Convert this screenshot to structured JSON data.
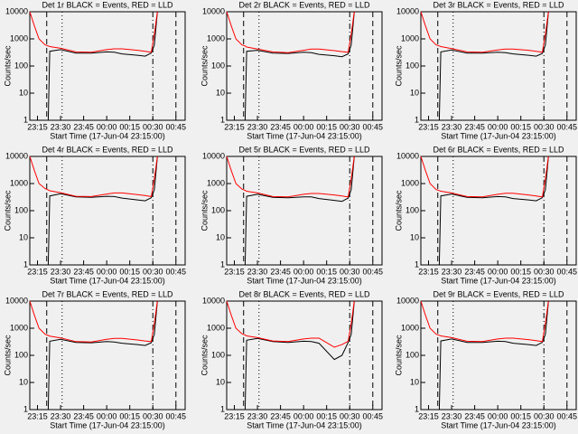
{
  "chart_data": [
    {
      "type": "line",
      "title": "Det 1r BLACK = Events, RED = LLD",
      "xlabel": "Start Time (17-Jun-04 23:15:00)",
      "ylabel": "Counts/sec",
      "ylog": true,
      "x": [
        "23:10",
        "23:13",
        "23:16",
        "23:20",
        "23:22",
        "23:23",
        "23:30",
        "23:40",
        "23:50",
        "00:00",
        "00:05",
        "00:10",
        "00:20",
        "00:25",
        "00:29",
        "00:31",
        "00:33"
      ],
      "series": [
        {
          "color": "#000000",
          "values": [
            null,
            null,
            null,
            null,
            1,
            350,
            400,
            300,
            300,
            330,
            320,
            280,
            250,
            230,
            300,
            600,
            10000
          ]
        },
        {
          "color": "#ff0000",
          "values": [
            10000,
            3000,
            1000,
            600,
            550,
            520,
            450,
            330,
            320,
            400,
            430,
            430,
            380,
            350,
            320,
            1500,
            10000
          ]
        }
      ],
      "xlim": [
        "23:10",
        "00:51"
      ],
      "xticks": [
        "23:15",
        "23:30",
        "23:45",
        "00:00",
        "00:15",
        "00:30",
        "00:45"
      ],
      "ylim": [
        1,
        10000
      ],
      "yticks": [
        1,
        10,
        100,
        1000,
        10000
      ],
      "vlines": [
        {
          "x": "23:21",
          "style": "dashed"
        },
        {
          "x": "23:31",
          "style": "dotted"
        },
        {
          "x": "00:30",
          "style": "dashdot"
        },
        {
          "x": "00:45",
          "style": "dashed"
        }
      ]
    },
    {
      "type": "line",
      "title": "Det 2r BLACK = Events, RED = LLD",
      "xlabel": "Start Time (17-Jun-04 23:15:00)",
      "ylabel": "Counts/sec",
      "ylog": true,
      "x": [
        "23:10",
        "23:13",
        "23:16",
        "23:20",
        "23:22",
        "23:23",
        "23:30",
        "23:40",
        "23:50",
        "00:00",
        "00:05",
        "00:10",
        "00:20",
        "00:25",
        "00:29",
        "00:31",
        "00:33"
      ],
      "series": [
        {
          "color": "#000000",
          "values": [
            null,
            null,
            null,
            null,
            1,
            350,
            380,
            300,
            290,
            320,
            310,
            270,
            240,
            220,
            280,
            600,
            10000
          ]
        },
        {
          "color": "#ff0000",
          "values": [
            10000,
            3000,
            1000,
            600,
            550,
            500,
            420,
            330,
            310,
            380,
            420,
            420,
            370,
            340,
            320,
            1500,
            10000
          ]
        }
      ],
      "xlim": [
        "23:10",
        "00:51"
      ],
      "xticks": [
        "23:15",
        "23:30",
        "23:45",
        "00:00",
        "00:15",
        "00:30",
        "00:45"
      ],
      "ylim": [
        1,
        10000
      ],
      "yticks": [
        1,
        10,
        100,
        1000,
        10000
      ],
      "vlines": [
        {
          "x": "23:21",
          "style": "dashed"
        },
        {
          "x": "23:31",
          "style": "dotted"
        },
        {
          "x": "00:30",
          "style": "dashdot"
        },
        {
          "x": "00:45",
          "style": "dashed"
        }
      ]
    },
    {
      "type": "line",
      "title": "Det 3r BLACK = Events, RED = LLD",
      "xlabel": "Start Time (17-Jun-04 23:15:00)",
      "ylabel": "Counts/sec",
      "ylog": true,
      "x": [
        "23:10",
        "23:13",
        "23:16",
        "23:20",
        "23:22",
        "23:23",
        "23:30",
        "23:40",
        "23:50",
        "00:00",
        "00:05",
        "00:10",
        "00:20",
        "00:25",
        "00:29",
        "00:31",
        "00:33"
      ],
      "series": [
        {
          "color": "#000000",
          "values": [
            null,
            null,
            null,
            null,
            1,
            330,
            390,
            300,
            300,
            320,
            310,
            280,
            250,
            230,
            290,
            600,
            10000
          ]
        },
        {
          "color": "#ff0000",
          "values": [
            10000,
            3000,
            1000,
            600,
            550,
            520,
            440,
            330,
            320,
            390,
            420,
            420,
            380,
            350,
            320,
            1500,
            10000
          ]
        }
      ],
      "xlim": [
        "23:10",
        "00:51"
      ],
      "xticks": [
        "23:15",
        "23:30",
        "23:45",
        "00:00",
        "00:15",
        "00:30",
        "00:45"
      ],
      "ylim": [
        1,
        10000
      ],
      "yticks": [
        1,
        10,
        100,
        1000,
        10000
      ],
      "vlines": [
        {
          "x": "23:21",
          "style": "dashed"
        },
        {
          "x": "23:31",
          "style": "dotted"
        },
        {
          "x": "00:30",
          "style": "dashdot"
        },
        {
          "x": "00:45",
          "style": "dashed"
        }
      ]
    },
    {
      "type": "line",
      "title": "Det 4r BLACK = Events, RED = LLD",
      "xlabel": "Start Time (17-Jun-04 23:15:00)",
      "ylabel": "Counts/sec",
      "ylog": true,
      "x": [
        "23:10",
        "23:13",
        "23:16",
        "23:20",
        "23:22",
        "23:23",
        "23:30",
        "23:40",
        "23:50",
        "00:00",
        "00:05",
        "00:10",
        "00:20",
        "00:25",
        "00:29",
        "00:31",
        "00:33"
      ],
      "series": [
        {
          "color": "#000000",
          "values": [
            null,
            null,
            null,
            null,
            1,
            350,
            420,
            320,
            310,
            340,
            330,
            290,
            250,
            230,
            300,
            600,
            10000
          ]
        },
        {
          "color": "#ff0000",
          "values": [
            10000,
            3000,
            1000,
            650,
            580,
            540,
            460,
            340,
            330,
            410,
            450,
            450,
            390,
            360,
            330,
            1500,
            10000
          ]
        }
      ],
      "xlim": [
        "23:10",
        "00:51"
      ],
      "xticks": [
        "23:15",
        "23:30",
        "23:45",
        "00:00",
        "00:15",
        "00:30",
        "00:45"
      ],
      "ylim": [
        1,
        10000
      ],
      "yticks": [
        1,
        10,
        100,
        1000,
        10000
      ],
      "vlines": [
        {
          "x": "23:21",
          "style": "dashed"
        },
        {
          "x": "23:31",
          "style": "dotted"
        },
        {
          "x": "00:30",
          "style": "dashdot"
        },
        {
          "x": "00:45",
          "style": "dashed"
        }
      ]
    },
    {
      "type": "line",
      "title": "Det 5r BLACK = Events, RED = LLD",
      "xlabel": "Start Time (17-Jun-04 23:15:00)",
      "ylabel": "Counts/sec",
      "ylog": true,
      "x": [
        "23:10",
        "23:13",
        "23:16",
        "23:20",
        "23:22",
        "23:23",
        "23:30",
        "23:40",
        "23:50",
        "00:00",
        "00:05",
        "00:10",
        "00:20",
        "00:25",
        "00:29",
        "00:31",
        "00:33"
      ],
      "series": [
        {
          "color": "#000000",
          "values": [
            null,
            null,
            null,
            null,
            1,
            340,
            400,
            310,
            300,
            320,
            320,
            280,
            240,
            220,
            290,
            600,
            10000
          ]
        },
        {
          "color": "#ff0000",
          "values": [
            10000,
            3000,
            1000,
            620,
            560,
            520,
            450,
            330,
            320,
            400,
            430,
            430,
            380,
            350,
            320,
            1500,
            10000
          ]
        }
      ],
      "xlim": [
        "23:10",
        "00:51"
      ],
      "xticks": [
        "23:15",
        "23:30",
        "23:45",
        "00:00",
        "00:15",
        "00:30",
        "00:45"
      ],
      "ylim": [
        1,
        10000
      ],
      "yticks": [
        1,
        10,
        100,
        1000,
        10000
      ],
      "vlines": [
        {
          "x": "23:21",
          "style": "dashed"
        },
        {
          "x": "23:31",
          "style": "dotted"
        },
        {
          "x": "00:30",
          "style": "dashdot"
        },
        {
          "x": "00:45",
          "style": "dashed"
        }
      ]
    },
    {
      "type": "line",
      "title": "Det 6r BLACK = Events, RED = LLD",
      "xlabel": "Start Time (17-Jun-04 23:15:00)",
      "ylabel": "Counts/sec",
      "ylog": true,
      "x": [
        "23:10",
        "23:13",
        "23:16",
        "23:20",
        "23:22",
        "23:23",
        "23:30",
        "23:40",
        "23:50",
        "00:00",
        "00:05",
        "00:10",
        "00:20",
        "00:25",
        "00:29",
        "00:31",
        "00:33"
      ],
      "series": [
        {
          "color": "#000000",
          "values": [
            null,
            null,
            null,
            null,
            1,
            350,
            410,
            310,
            300,
            330,
            320,
            280,
            250,
            230,
            300,
            600,
            10000
          ]
        },
        {
          "color": "#ff0000",
          "values": [
            10000,
            3000,
            1000,
            600,
            550,
            520,
            450,
            330,
            320,
            400,
            440,
            440,
            380,
            350,
            320,
            1500,
            10000
          ]
        }
      ],
      "xlim": [
        "23:10",
        "00:51"
      ],
      "xticks": [
        "23:15",
        "23:30",
        "23:45",
        "00:00",
        "00:15",
        "00:30",
        "00:45"
      ],
      "ylim": [
        1,
        10000
      ],
      "yticks": [
        1,
        10,
        100,
        1000,
        10000
      ],
      "vlines": [
        {
          "x": "23:21",
          "style": "dashed"
        },
        {
          "x": "23:31",
          "style": "dotted"
        },
        {
          "x": "00:30",
          "style": "dashdot"
        },
        {
          "x": "00:45",
          "style": "dashed"
        }
      ]
    },
    {
      "type": "line",
      "title": "Det 7r BLACK = Events, RED = LLD",
      "xlabel": "Start Time (17-Jun-04 23:15:00)",
      "ylabel": "Counts/sec",
      "ylog": true,
      "x": [
        "23:10",
        "23:13",
        "23:16",
        "23:20",
        "23:22",
        "23:23",
        "23:30",
        "23:40",
        "23:50",
        "00:00",
        "00:05",
        "00:10",
        "00:20",
        "00:25",
        "00:29",
        "00:31",
        "00:33"
      ],
      "series": [
        {
          "color": "#000000",
          "values": [
            null,
            null,
            null,
            null,
            1,
            330,
            390,
            300,
            290,
            320,
            310,
            280,
            250,
            230,
            290,
            600,
            10000
          ]
        },
        {
          "color": "#ff0000",
          "values": [
            10000,
            3000,
            1000,
            600,
            540,
            510,
            440,
            320,
            310,
            390,
            420,
            420,
            370,
            340,
            320,
            1500,
            10000
          ]
        }
      ],
      "xlim": [
        "23:10",
        "00:51"
      ],
      "xticks": [
        "23:15",
        "23:30",
        "23:45",
        "00:00",
        "00:15",
        "00:30",
        "00:45"
      ],
      "ylim": [
        1,
        10000
      ],
      "yticks": [
        1,
        10,
        100,
        1000,
        10000
      ],
      "vlines": [
        {
          "x": "23:21",
          "style": "dashed"
        },
        {
          "x": "23:31",
          "style": "dotted"
        },
        {
          "x": "00:30",
          "style": "dashdot"
        },
        {
          "x": "00:45",
          "style": "dashed"
        }
      ]
    },
    {
      "type": "line",
      "title": "Det 8r BLACK = Events, RED = LLD",
      "xlabel": "Start Time (17-Jun-04 23:15:00)",
      "ylabel": "Counts/sec",
      "ylog": true,
      "x": [
        "23:10",
        "23:13",
        "23:16",
        "23:20",
        "23:22",
        "23:23",
        "23:30",
        "23:40",
        "23:50",
        "00:00",
        "00:05",
        "00:10",
        "00:20",
        "00:25",
        "00:29",
        "00:31",
        "00:33"
      ],
      "series": [
        {
          "color": "#000000",
          "values": [
            null,
            null,
            null,
            null,
            1,
            360,
            420,
            320,
            300,
            330,
            320,
            280,
            70,
            100,
            300,
            600,
            10000
          ]
        },
        {
          "color": "#ff0000",
          "values": [
            10000,
            3000,
            1000,
            620,
            560,
            520,
            450,
            340,
            320,
            400,
            430,
            430,
            200,
            250,
            330,
            1500,
            10000
          ]
        }
      ],
      "xlim": [
        "23:10",
        "00:51"
      ],
      "xticks": [
        "23:15",
        "23:30",
        "23:45",
        "00:00",
        "00:15",
        "00:30",
        "00:45"
      ],
      "ylim": [
        1,
        10000
      ],
      "yticks": [
        1,
        10,
        100,
        1000,
        10000
      ],
      "vlines": [
        {
          "x": "23:21",
          "style": "dashed"
        },
        {
          "x": "23:31",
          "style": "dotted"
        },
        {
          "x": "00:30",
          "style": "dashdot"
        },
        {
          "x": "00:45",
          "style": "dashed"
        }
      ]
    },
    {
      "type": "line",
      "title": "Det 9r BLACK = Events, RED = LLD",
      "xlabel": "Start Time (17-Jun-04 23:15:00)",
      "ylabel": "Counts/sec",
      "ylog": true,
      "x": [
        "23:10",
        "23:13",
        "23:16",
        "23:20",
        "23:22",
        "23:23",
        "23:30",
        "23:40",
        "23:50",
        "00:00",
        "00:05",
        "00:10",
        "00:20",
        "00:25",
        "00:29",
        "00:31",
        "00:33"
      ],
      "series": [
        {
          "color": "#000000",
          "values": [
            null,
            null,
            null,
            null,
            1,
            340,
            400,
            300,
            300,
            330,
            320,
            280,
            250,
            230,
            300,
            600,
            10000
          ]
        },
        {
          "color": "#ff0000",
          "values": [
            10000,
            3000,
            1000,
            600,
            550,
            520,
            450,
            330,
            320,
            400,
            430,
            430,
            380,
            350,
            320,
            1500,
            10000
          ]
        }
      ],
      "xlim": [
        "23:10",
        "00:51"
      ],
      "xticks": [
        "23:15",
        "23:30",
        "23:45",
        "00:00",
        "00:15",
        "00:30",
        "00:45"
      ],
      "ylim": [
        1,
        10000
      ],
      "yticks": [
        1,
        10,
        100,
        1000,
        10000
      ],
      "vlines": [
        {
          "x": "23:21",
          "style": "dashed"
        },
        {
          "x": "23:31",
          "style": "dotted"
        },
        {
          "x": "00:30",
          "style": "dashdot"
        },
        {
          "x": "00:45",
          "style": "dashed"
        }
      ]
    }
  ]
}
